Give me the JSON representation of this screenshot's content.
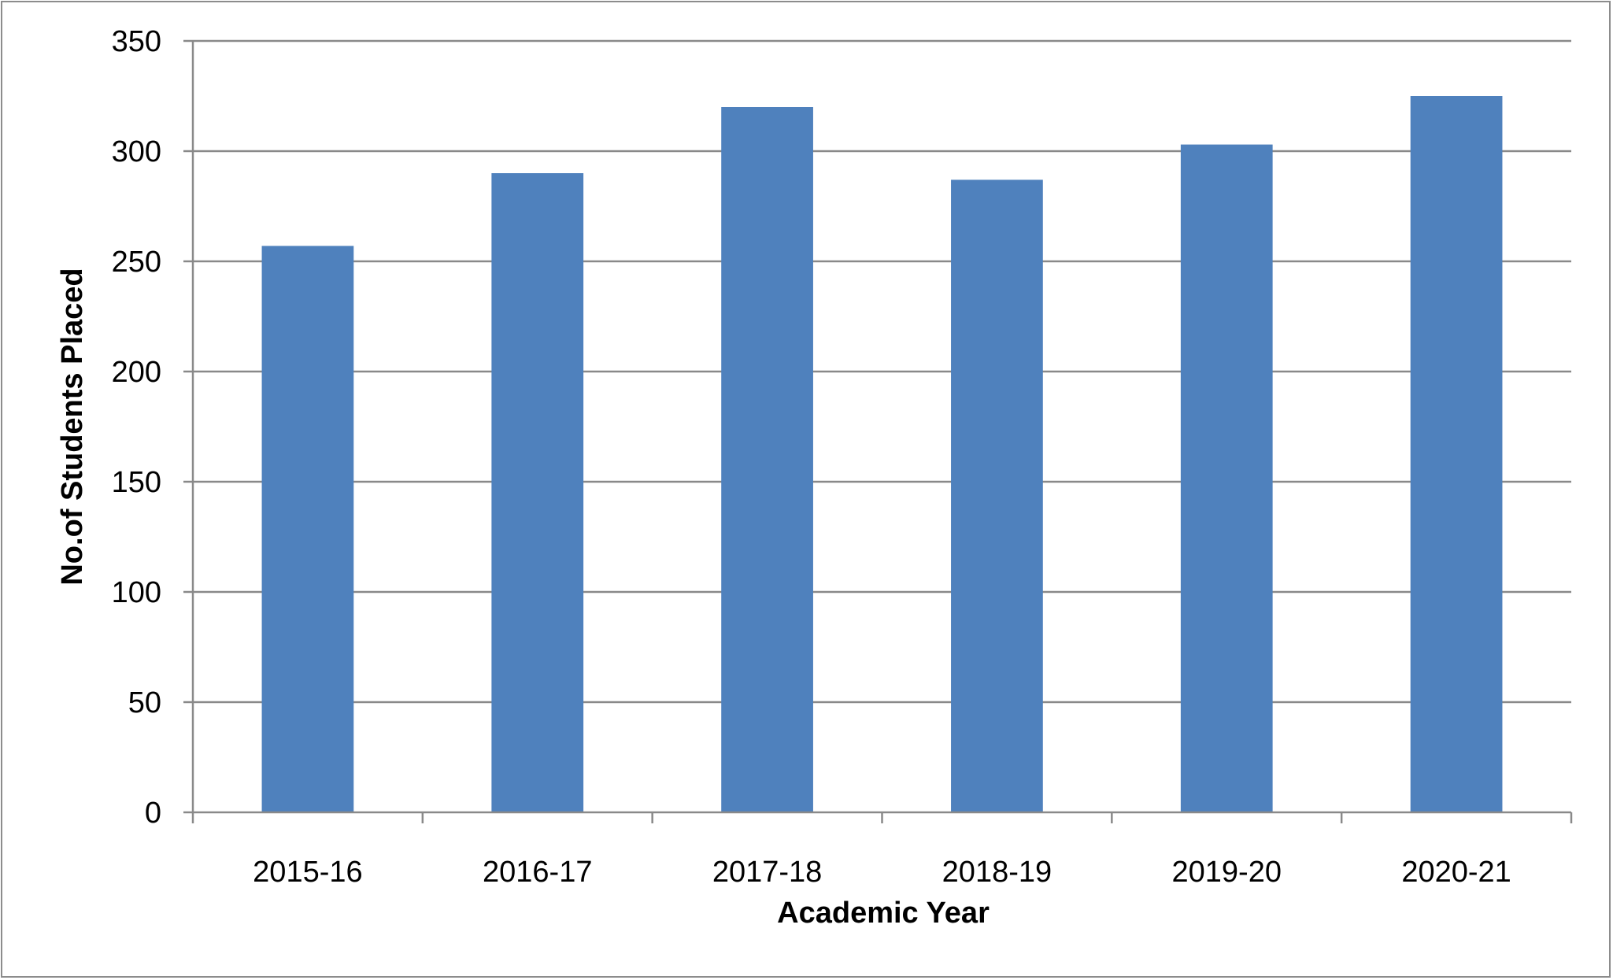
{
  "chart_data": {
    "type": "bar",
    "categories": [
      "2015-16",
      "2016-17",
      "2017-18",
      "2018-19",
      "2019-20",
      "2020-21"
    ],
    "values": [
      257,
      290,
      320,
      287,
      303,
      325
    ],
    "title": "",
    "xlabel": "Academic Year",
    "ylabel": "No.of Students Placed",
    "ylim": [
      0,
      350
    ],
    "yticks": [
      0,
      50,
      100,
      150,
      200,
      250,
      300,
      350
    ],
    "grid": true,
    "legend": "none",
    "bar_color": "#4f81bd",
    "grid_color": "#898989",
    "axis_color": "#898989"
  }
}
